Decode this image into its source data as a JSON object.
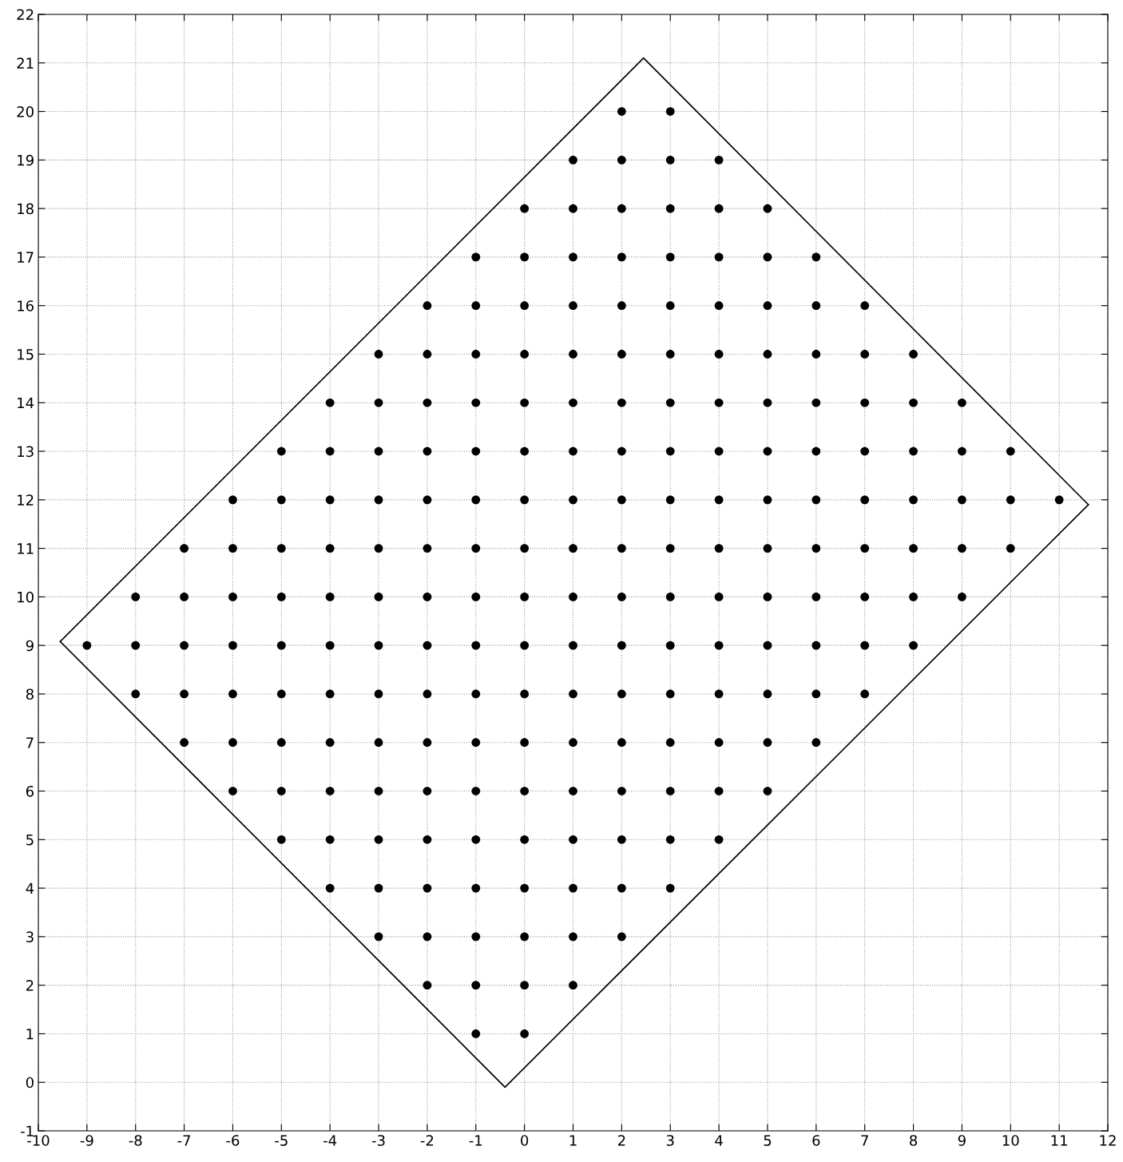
{
  "chart_data": {
    "type": "scatter",
    "xlim": [
      -10,
      12
    ],
    "ylim": [
      -1,
      22
    ],
    "xticks": [
      -10,
      -9,
      -8,
      -7,
      -6,
      -5,
      -4,
      -3,
      -2,
      -1,
      0,
      1,
      2,
      3,
      4,
      5,
      6,
      7,
      8,
      9,
      10,
      11,
      12
    ],
    "yticks": [
      -1,
      0,
      1,
      2,
      3,
      4,
      5,
      6,
      7,
      8,
      9,
      10,
      11,
      12,
      13,
      14,
      15,
      16,
      17,
      18,
      19,
      20,
      21,
      22
    ],
    "grid": true,
    "legend": false,
    "series": [
      {
        "color": "#000000",
        "marker": "circle",
        "x": [
          2,
          3,
          1,
          2,
          3,
          4,
          0,
          1,
          2,
          3,
          4,
          5,
          -1,
          0,
          1,
          2,
          3,
          4,
          5,
          6,
          -2,
          -1,
          0,
          1,
          2,
          3,
          4,
          5,
          6,
          7,
          -3,
          -2,
          -1,
          0,
          1,
          2,
          3,
          4,
          5,
          6,
          7,
          8,
          -4,
          -3,
          -2,
          -1,
          0,
          1,
          2,
          3,
          4,
          5,
          6,
          7,
          8,
          9,
          -5,
          -4,
          -3,
          -2,
          -1,
          0,
          1,
          2,
          3,
          4,
          5,
          6,
          7,
          8,
          9,
          10,
          -6,
          -5,
          -4,
          -3,
          -2,
          -1,
          0,
          1,
          2,
          3,
          4,
          5,
          6,
          7,
          8,
          9,
          10,
          11,
          -7,
          -6,
          -5,
          -4,
          -3,
          -2,
          -1,
          0,
          1,
          2,
          3,
          4,
          5,
          6,
          7,
          8,
          9,
          10,
          -8,
          -7,
          -6,
          -5,
          -4,
          -3,
          -2,
          -1,
          0,
          1,
          2,
          3,
          4,
          5,
          6,
          7,
          8,
          9,
          -9,
          -8,
          -7,
          -6,
          -5,
          -4,
          -3,
          -2,
          -1,
          0,
          1,
          2,
          3,
          4,
          5,
          6,
          7,
          8,
          -8,
          -7,
          -6,
          -5,
          -4,
          -3,
          -2,
          -1,
          0,
          1,
          2,
          3,
          4,
          5,
          6,
          7,
          -7,
          -6,
          -5,
          -4,
          -3,
          -2,
          -1,
          0,
          1,
          2,
          3,
          4,
          5,
          6,
          -6,
          -5,
          -4,
          -3,
          -2,
          -1,
          0,
          1,
          2,
          3,
          4,
          5,
          -5,
          -4,
          -3,
          -2,
          -1,
          0,
          1,
          2,
          3,
          4,
          -4,
          -3,
          -2,
          -1,
          0,
          1,
          2,
          3,
          -3,
          -2,
          -1,
          0,
          1,
          2,
          -2,
          -1,
          0,
          1,
          -1,
          0
        ],
        "values": [
          20,
          20,
          19,
          19,
          19,
          19,
          18,
          18,
          18,
          18,
          18,
          18,
          17,
          17,
          17,
          17,
          17,
          17,
          17,
          17,
          16,
          16,
          16,
          16,
          16,
          16,
          16,
          16,
          16,
          16,
          15,
          15,
          15,
          15,
          15,
          15,
          15,
          15,
          15,
          15,
          15,
          15,
          14,
          14,
          14,
          14,
          14,
          14,
          14,
          14,
          14,
          14,
          14,
          14,
          14,
          14,
          13,
          13,
          13,
          13,
          13,
          13,
          13,
          13,
          13,
          13,
          13,
          13,
          13,
          13,
          13,
          13,
          12,
          12,
          12,
          12,
          12,
          12,
          12,
          12,
          12,
          12,
          12,
          12,
          12,
          12,
          12,
          12,
          12,
          12,
          11,
          11,
          11,
          11,
          11,
          11,
          11,
          11,
          11,
          11,
          11,
          11,
          11,
          11,
          11,
          11,
          11,
          11,
          10,
          10,
          10,
          10,
          10,
          10,
          10,
          10,
          10,
          10,
          10,
          10,
          10,
          10,
          10,
          10,
          10,
          10,
          9,
          9,
          9,
          9,
          9,
          9,
          9,
          9,
          9,
          9,
          9,
          9,
          9,
          9,
          9,
          9,
          9,
          9,
          8,
          8,
          8,
          8,
          8,
          8,
          8,
          8,
          8,
          8,
          8,
          8,
          8,
          8,
          8,
          8,
          7,
          7,
          7,
          7,
          7,
          7,
          7,
          7,
          7,
          7,
          7,
          7,
          7,
          7,
          6,
          6,
          6,
          6,
          6,
          6,
          6,
          6,
          6,
          6,
          6,
          6,
          5,
          5,
          5,
          5,
          5,
          5,
          5,
          5,
          5,
          5,
          4,
          4,
          4,
          4,
          4,
          4,
          4,
          4,
          3,
          3,
          3,
          3,
          3,
          3,
          2,
          2,
          2,
          2,
          1,
          1
        ]
      },
      {
        "type": "line",
        "color": "#000000",
        "marker": "none",
        "line_style": "solid",
        "x": [
          -9.55,
          2.45,
          11.6
        ],
        "values": [
          9.08,
          21.1,
          11.9
        ]
      },
      {
        "type": "line",
        "color": "#000000",
        "marker": "none",
        "line_style": "solid",
        "x": [
          -9.55,
          -0.4,
          11.6
        ],
        "values": [
          9.08,
          -0.1,
          11.9
        ]
      }
    ]
  }
}
